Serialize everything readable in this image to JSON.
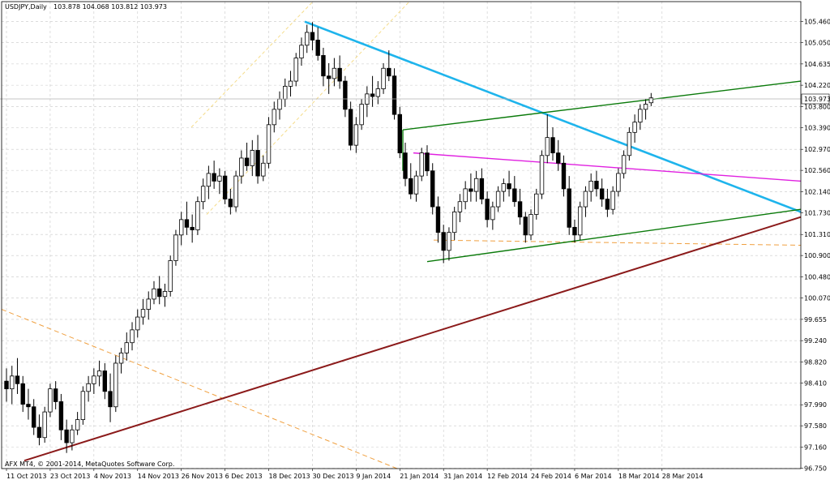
{
  "header": {
    "symbol": "USDJPY,Daily",
    "ohlc": "103.878 104.068 103.812 103.973"
  },
  "footer": {
    "copyright": "AFX MT4, © 2001-2014, MetaQuotes Software Corp."
  },
  "chart_data": {
    "type": "candlestick",
    "title": "USDJPY,Daily",
    "ylim": [
      96.745,
      105.85
    ],
    "grid": true,
    "current_price": "103.973",
    "y_ticks": [
      "105.460",
      "105.050",
      "104.635",
      "104.220",
      "103.800",
      "103.390",
      "102.970",
      "102.560",
      "102.140",
      "101.730",
      "101.310",
      "100.900",
      "100.480",
      "100.070",
      "99.655",
      "99.240",
      "98.820",
      "98.410",
      "97.990",
      "97.580",
      "97.160",
      "96.750"
    ],
    "x_ticks": [
      "11 Oct 2013",
      "23 Oct 2013",
      "4 Nov 2013",
      "14 Nov 2013",
      "26 Nov 2013",
      "6 Dec 2013",
      "18 Dec 2013",
      "30 Dec 2013",
      "9 Jan 2014",
      "21 Jan 2014",
      "31 Jan 2014",
      "12 Feb 2014",
      "24 Feb 2014",
      "6 Mar 2014",
      "18 Mar 2014",
      "28 Mar 2014"
    ],
    "candles": [
      [
        98.45,
        98.7,
        98.05,
        98.3
      ],
      [
        98.3,
        98.75,
        98.0,
        98.55
      ],
      [
        98.55,
        98.9,
        98.2,
        98.4
      ],
      [
        98.4,
        98.55,
        97.85,
        98.0
      ],
      [
        98.0,
        98.3,
        97.7,
        97.95
      ],
      [
        97.95,
        98.1,
        97.4,
        97.55
      ],
      [
        97.55,
        97.8,
        97.2,
        97.35
      ],
      [
        97.35,
        97.95,
        97.25,
        97.85
      ],
      [
        97.85,
        98.4,
        97.75,
        98.3
      ],
      [
        98.3,
        98.45,
        97.9,
        98.05
      ],
      [
        98.05,
        98.2,
        97.3,
        97.5
      ],
      [
        97.5,
        97.7,
        97.05,
        97.25
      ],
      [
        97.25,
        97.6,
        97.1,
        97.5
      ],
      [
        97.5,
        97.85,
        97.4,
        97.7
      ],
      [
        97.7,
        98.35,
        97.6,
        98.25
      ],
      [
        98.25,
        98.55,
        98.05,
        98.4
      ],
      [
        98.4,
        98.7,
        98.2,
        98.55
      ],
      [
        98.55,
        98.85,
        98.35,
        98.65
      ],
      [
        98.65,
        98.8,
        98.1,
        98.25
      ],
      [
        98.25,
        98.6,
        97.65,
        97.95
      ],
      [
        97.95,
        98.95,
        97.85,
        98.8
      ],
      [
        98.8,
        99.1,
        98.6,
        99.0
      ],
      [
        99.0,
        99.4,
        98.85,
        99.2
      ],
      [
        99.2,
        99.6,
        99.05,
        99.45
      ],
      [
        99.45,
        99.85,
        99.3,
        99.7
      ],
      [
        99.7,
        100.05,
        99.55,
        99.85
      ],
      [
        99.85,
        100.2,
        99.65,
        100.05
      ],
      [
        100.05,
        100.4,
        99.95,
        100.25
      ],
      [
        100.25,
        100.5,
        99.95,
        100.1
      ],
      [
        100.1,
        100.35,
        99.9,
        100.2
      ],
      [
        100.2,
        100.9,
        100.1,
        100.8
      ],
      [
        100.8,
        101.4,
        100.7,
        101.3
      ],
      [
        101.3,
        101.75,
        101.1,
        101.6
      ],
      [
        101.6,
        101.95,
        101.3,
        101.45
      ],
      [
        101.45,
        101.7,
        101.15,
        101.4
      ],
      [
        101.4,
        102.05,
        101.3,
        101.95
      ],
      [
        101.95,
        102.4,
        101.8,
        102.25
      ],
      [
        102.25,
        102.65,
        102.0,
        102.5
      ],
      [
        102.5,
        102.75,
        102.2,
        102.35
      ],
      [
        102.35,
        102.6,
        102.1,
        102.45
      ],
      [
        102.45,
        102.55,
        101.9,
        102.0
      ],
      [
        102.0,
        102.2,
        101.7,
        101.85
      ],
      [
        101.85,
        102.55,
        101.75,
        102.45
      ],
      [
        102.45,
        102.95,
        102.3,
        102.8
      ],
      [
        102.8,
        103.1,
        102.55,
        102.65
      ],
      [
        102.65,
        103.15,
        102.45,
        102.95
      ],
      [
        102.95,
        103.25,
        102.3,
        102.45
      ],
      [
        102.45,
        102.85,
        102.35,
        102.7
      ],
      [
        102.7,
        103.6,
        102.6,
        103.45
      ],
      [
        103.45,
        103.9,
        103.3,
        103.75
      ],
      [
        103.75,
        104.1,
        103.55,
        103.95
      ],
      [
        103.95,
        104.35,
        103.8,
        104.2
      ],
      [
        104.2,
        104.5,
        104.0,
        104.3
      ],
      [
        104.3,
        104.85,
        104.2,
        104.75
      ],
      [
        104.75,
        105.15,
        104.6,
        105.0
      ],
      [
        105.0,
        105.4,
        104.85,
        105.25
      ],
      [
        105.25,
        105.45,
        104.9,
        105.1
      ],
      [
        105.1,
        105.35,
        104.7,
        104.8
      ],
      [
        104.8,
        104.95,
        104.2,
        104.4
      ],
      [
        104.4,
        104.65,
        104.05,
        104.35
      ],
      [
        104.35,
        104.75,
        104.2,
        104.55
      ],
      [
        104.55,
        104.8,
        104.15,
        104.3
      ],
      [
        104.3,
        104.4,
        103.6,
        103.75
      ],
      [
        103.75,
        103.9,
        102.95,
        103.05
      ],
      [
        103.05,
        103.6,
        102.9,
        103.45
      ],
      [
        103.45,
        103.95,
        103.35,
        103.85
      ],
      [
        103.85,
        104.2,
        103.6,
        104.05
      ],
      [
        104.05,
        104.4,
        103.8,
        104.0
      ],
      [
        104.0,
        104.3,
        103.85,
        104.15
      ],
      [
        104.15,
        104.65,
        104.05,
        104.55
      ],
      [
        104.55,
        104.9,
        104.3,
        104.4
      ],
      [
        104.4,
        104.55,
        103.55,
        103.65
      ],
      [
        103.65,
        103.8,
        102.8,
        102.9
      ],
      [
        102.9,
        103.1,
        102.25,
        102.4
      ],
      [
        102.4,
        102.7,
        102.0,
        102.1
      ],
      [
        102.1,
        102.55,
        101.95,
        102.45
      ],
      [
        102.45,
        103.0,
        102.35,
        102.9
      ],
      [
        102.9,
        103.05,
        102.45,
        102.55
      ],
      [
        102.55,
        102.7,
        101.7,
        101.85
      ],
      [
        101.85,
        102.05,
        101.15,
        101.35
      ],
      [
        101.35,
        101.5,
        100.75,
        101.0
      ],
      [
        101.0,
        101.45,
        100.8,
        101.35
      ],
      [
        101.35,
        101.85,
        101.2,
        101.75
      ],
      [
        101.75,
        102.1,
        101.55,
        101.95
      ],
      [
        101.95,
        102.35,
        101.8,
        102.2
      ],
      [
        102.2,
        102.5,
        101.95,
        102.15
      ],
      [
        102.15,
        102.55,
        101.95,
        102.4
      ],
      [
        102.4,
        102.6,
        101.9,
        102.0
      ],
      [
        102.0,
        102.15,
        101.45,
        101.6
      ],
      [
        101.6,
        101.95,
        101.4,
        101.85
      ],
      [
        101.85,
        102.25,
        101.75,
        102.15
      ],
      [
        102.15,
        102.4,
        101.95,
        102.3
      ],
      [
        102.3,
        102.55,
        102.05,
        102.2
      ],
      [
        102.2,
        102.45,
        101.85,
        101.95
      ],
      [
        101.95,
        102.2,
        101.5,
        101.65
      ],
      [
        101.65,
        101.75,
        101.15,
        101.3
      ],
      [
        101.3,
        101.8,
        101.2,
        101.7
      ],
      [
        101.7,
        102.2,
        101.6,
        102.1
      ],
      [
        102.1,
        102.95,
        102.0,
        102.85
      ],
      [
        102.85,
        103.65,
        102.7,
        103.2
      ],
      [
        103.2,
        103.4,
        102.75,
        102.9
      ],
      [
        102.9,
        103.15,
        102.55,
        102.7
      ],
      [
        102.7,
        102.85,
        102.05,
        102.2
      ],
      [
        102.2,
        102.45,
        101.3,
        101.45
      ],
      [
        101.45,
        101.6,
        101.15,
        101.3
      ],
      [
        101.3,
        101.95,
        101.2,
        101.85
      ],
      [
        101.85,
        102.25,
        101.65,
        102.15
      ],
      [
        102.15,
        102.5,
        101.95,
        102.35
      ],
      [
        102.35,
        102.55,
        102.05,
        102.2
      ],
      [
        102.2,
        102.4,
        101.85,
        102.0
      ],
      [
        102.0,
        102.2,
        101.65,
        101.8
      ],
      [
        101.8,
        102.25,
        101.7,
        102.15
      ],
      [
        102.15,
        102.6,
        102.05,
        102.5
      ],
      [
        102.5,
        102.95,
        102.4,
        102.85
      ],
      [
        102.85,
        103.4,
        102.75,
        103.3
      ],
      [
        103.3,
        103.65,
        103.1,
        103.5
      ],
      [
        103.5,
        103.85,
        103.35,
        103.75
      ],
      [
        103.75,
        103.95,
        103.55,
        103.85
      ],
      [
        103.878,
        104.068,
        103.812,
        103.973
      ]
    ],
    "lines": [
      {
        "name": "descending-blue",
        "color": "#1eb4ec",
        "from": [
          "30 Dec 2013",
          105.46
        ],
        "to": [
          "right edge",
          101.75
        ]
      },
      {
        "name": "pennant-upper-green",
        "color": "#0a7a0a",
        "from": [
          "17 Jan 2014",
          103.35
        ],
        "to": [
          "right edge",
          104.3
        ]
      },
      {
        "name": "pennant-lower-green",
        "color": "#0a7a0a",
        "from": [
          "27 Jan 2014",
          100.78
        ],
        "to": [
          "right edge",
          101.8
        ]
      },
      {
        "name": "magenta-resistance",
        "color": "#e020e0",
        "from": [
          "21 Jan 2014",
          102.9
        ],
        "to": [
          "right edge",
          102.35
        ]
      },
      {
        "name": "brown-support",
        "color": "#8b1a1a",
        "from": [
          "14 Oct 2013",
          96.9
        ],
        "to": [
          "right edge",
          101.65
        ]
      }
    ]
  }
}
